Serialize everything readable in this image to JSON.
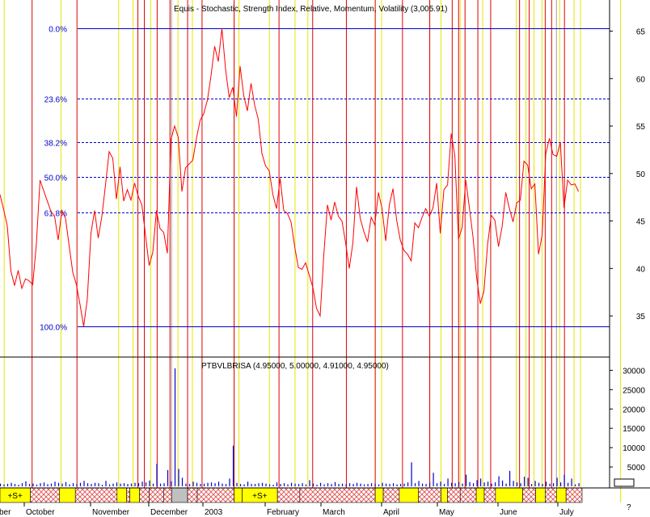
{
  "header": {
    "title": "Equis - Stochastic, Strength Index, Relative, Momentum, Volatility (3,005.91)",
    "volume_title": "PTBVLBRISA (4.95000, 5.00000, 4.91000, 4.95000)"
  },
  "fib_levels": [
    {
      "label": "0.0%",
      "value": 65.3
    },
    {
      "label": "23.6%",
      "value": 57.9
    },
    {
      "label": "38.2%",
      "value": 53.3
    },
    {
      "label": "50.0%",
      "value": 49.6
    },
    {
      "label": "61.8%",
      "value": 45.9
    },
    {
      "label": "100.0%",
      "value": 33.9
    }
  ],
  "price_axis": {
    "ticks": [
      "65",
      "60",
      "55",
      "50",
      "45",
      "40",
      "35"
    ]
  },
  "volume_axis": {
    "ticks": [
      "30000",
      "25000",
      "20000",
      "15000",
      "10000",
      "5000"
    ]
  },
  "months": [
    "ber",
    "October",
    "November",
    "December",
    "2003",
    "February",
    "March",
    "April",
    "May",
    "June",
    "July"
  ],
  "misc": {
    "corner_mark": "?"
  },
  "band_labels": [
    "+S+",
    "+S+"
  ],
  "chart_data": {
    "type": "line",
    "title": "Equis - Stochastic, Strength Index, Relative, Momentum, Volatility (3,005.91)",
    "ylim": [
      31,
      67
    ],
    "x_range": [
      0,
      160
    ],
    "y_ticks": [
      35,
      40,
      45,
      50,
      55,
      60,
      65
    ],
    "series": [
      {
        "type": "line",
        "color": "#ff0000",
        "x": [
          0,
          1,
          2,
          3,
          4,
          5,
          6,
          7,
          8,
          9,
          10,
          11,
          12,
          13,
          14,
          15,
          16,
          17,
          18,
          19,
          20,
          21,
          22,
          23,
          24,
          25,
          26,
          27,
          28,
          29,
          30,
          31,
          32,
          33,
          34,
          35,
          36,
          37,
          38,
          39,
          40,
          41,
          42,
          43,
          44,
          45,
          46,
          47,
          48,
          49,
          50,
          51,
          52,
          53,
          54,
          55,
          56,
          57,
          58,
          59,
          60,
          61,
          62,
          63,
          64,
          65,
          66,
          67,
          68,
          69,
          70,
          71,
          72,
          73,
          74,
          75,
          76,
          77,
          78,
          79,
          80,
          81,
          82,
          83,
          84,
          85,
          86,
          87,
          88,
          89,
          90,
          91,
          92,
          93,
          94,
          95,
          96,
          97,
          98,
          99,
          100,
          101,
          102,
          103,
          104,
          105,
          106,
          107,
          108,
          109,
          110,
          111,
          112,
          113,
          114,
          115,
          116,
          117,
          118,
          119,
          120,
          121,
          122,
          123,
          124,
          125,
          126,
          127,
          128,
          129,
          130,
          131,
          132,
          133,
          134,
          135,
          136,
          137,
          138,
          139,
          140,
          141,
          142,
          143,
          144,
          145,
          146,
          147,
          148,
          149,
          150,
          151,
          152,
          153,
          154,
          155,
          156,
          157,
          158,
          159
        ],
        "values": [
          47.8,
          46.2,
          44.5,
          39.7,
          38.2,
          39.8,
          37.9,
          38.9,
          38.7,
          38.3,
          42.6,
          49.3,
          48.2,
          47.1,
          46.0,
          45.5,
          43.0,
          46.1,
          45.3,
          42.4,
          39.6,
          38.3,
          36.2,
          33.9,
          36.8,
          43.7,
          46.1,
          43.2,
          45.5,
          48.8,
          52.3,
          51.6,
          47.3,
          50.7,
          47.1,
          48.3,
          47.2,
          49.0,
          47.6,
          46.7,
          43.5,
          40.3,
          41.7,
          46.1,
          44.2,
          43.8,
          41.6,
          53.6,
          55.0,
          53.8,
          48.1,
          50.6,
          51.0,
          51.4,
          53.7,
          55.6,
          56.3,
          57.7,
          60.3,
          63.4,
          61.8,
          65.3,
          61.0,
          58.0,
          59.1,
          56.0,
          61.3,
          58.2,
          56.6,
          59.5,
          57.2,
          55.7,
          52.1,
          50.8,
          50.3,
          47.8,
          46.3,
          49.5,
          46.1,
          45.8,
          44.9,
          42.3,
          40.1,
          39.9,
          40.6,
          39.3,
          38.0,
          35.8,
          35.0,
          41.4,
          46.7,
          45.1,
          47.0,
          45.5,
          45.0,
          42.7,
          40.0,
          42.7,
          48.6,
          45.3,
          43.9,
          42.8,
          45.4,
          44.6,
          48.0,
          46.3,
          42.9,
          46.7,
          48.4,
          45.1,
          43.0,
          41.9,
          41.5,
          40.8,
          44.8,
          44.3,
          45.4,
          46.3,
          45.5,
          46.4,
          49.0,
          43.7,
          48.3,
          48.8,
          54.2,
          51.9,
          43.1,
          44.3,
          49.3,
          46.4,
          43.3,
          39.0,
          36.3,
          37.6,
          42.5,
          45.6,
          45.1,
          42.3,
          44.4,
          48.0,
          46.3,
          44.9,
          46.9,
          47.2,
          51.3,
          50.9,
          48.4,
          48.9,
          41.5,
          43.5,
          52.1,
          53.7,
          52.0,
          51.8,
          53.3,
          46.4,
          49.3,
          48.8,
          48.9,
          48.1
        ]
      },
      {
        "type": "volume",
        "name": "PTBVLBRISA",
        "color": "#0000cc",
        "values": [
          700,
          500,
          650,
          900,
          600,
          400,
          800,
          1300,
          600,
          700,
          450,
          800,
          1000,
          550,
          700,
          1200,
          900,
          700,
          1100,
          500,
          800,
          600,
          900,
          1400,
          800,
          600,
          900,
          800,
          400,
          1400,
          500,
          700,
          1000,
          700,
          800,
          600,
          700,
          900,
          800,
          1200,
          1000,
          1500,
          700,
          5800,
          700,
          800,
          4200,
          1300,
          30500,
          4500,
          2200,
          700,
          600,
          1200,
          900,
          600,
          700,
          900,
          1000,
          800,
          1200,
          700,
          600,
          2000,
          10500,
          900,
          600,
          500,
          1200,
          600,
          600,
          800,
          900,
          700,
          500,
          400,
          1000,
          600,
          800,
          500,
          900,
          700,
          600,
          800,
          500,
          1600,
          700,
          400,
          900,
          500,
          800,
          600,
          1100,
          600,
          700,
          500,
          800,
          600,
          900,
          700,
          500,
          600,
          800,
          700,
          500,
          900,
          700,
          600,
          800,
          500,
          600,
          700,
          1000,
          6200,
          800,
          1400,
          700,
          600,
          900,
          3500,
          800,
          1200,
          600,
          2000,
          900,
          800,
          1100,
          700,
          3000,
          1100,
          800,
          1600,
          2000,
          1000,
          1200,
          700,
          1000,
          2600,
          1500,
          700,
          4000,
          1400,
          1000,
          800,
          2500,
          2200,
          600,
          1400,
          900,
          600,
          1200,
          700,
          800,
          2200,
          1000,
          3000,
          900,
          2000,
          500,
          800
        ]
      }
    ],
    "volume_ylim": [
      0,
      32000
    ],
    "volume_ticks": [
      5000,
      10000,
      15000,
      20000,
      25000,
      30000
    ],
    "red_event_x": [
      10.0,
      24.0,
      43.0,
      45.0,
      49.0,
      53.0,
      58.5,
      63.0,
      73.0,
      87.0,
      97.5,
      108.0,
      117.0,
      125.5,
      134.0,
      141.0,
      143.0,
      145.0,
      149.0,
      153.0,
      162.0,
      165.0,
      170.0,
      172.0,
      176.0
    ],
    "yellow_event_x": [
      1.3,
      19.0,
      37.0,
      41.5,
      47.0,
      55.5,
      60.0,
      73.0,
      74.5,
      84.0,
      92.0,
      96.0,
      117.0,
      119.0,
      134.0,
      137.5,
      143.5,
      150.5,
      161.0,
      164.0,
      166.5,
      169.0,
      174.5,
      179.0,
      181.0,
      193.5
    ],
    "gray_event_x": [
      53.5,
      173.5
    ],
    "bands": [
      {
        "x0": 0,
        "x1": 9.5,
        "color": "yellow"
      },
      {
        "x0": 9.5,
        "x1": 18.5,
        "color": "hatch"
      },
      {
        "x0": 18.5,
        "x1": 23.5,
        "color": "yellow"
      },
      {
        "x0": 23.5,
        "x1": 36.5,
        "color": "hatch"
      },
      {
        "x0": 36.5,
        "x1": 39.5,
        "color": "yellow"
      },
      {
        "x0": 39.5,
        "x1": 40.5,
        "color": "hatch"
      },
      {
        "x0": 40.5,
        "x1": 43.5,
        "color": "yellow"
      },
      {
        "x0": 43.5,
        "x1": 46.5,
        "color": "hatch"
      },
      {
        "x0": 46.5,
        "x1": 51.0,
        "color": "hatch"
      },
      {
        "x0": 51.0,
        "x1": 53.5,
        "color": "hatch"
      },
      {
        "x0": 53.5,
        "x1": 58.5,
        "color": "gray"
      },
      {
        "x0": 58.5,
        "x1": 61.5,
        "color": "hatch"
      },
      {
        "x0": 61.5,
        "x1": 73.0,
        "color": "hatch"
      },
      {
        "x0": 73.0,
        "x1": 75.5,
        "color": "yellow"
      },
      {
        "x0": 75.5,
        "x1": 86.5,
        "color": "yellow"
      },
      {
        "x0": 86.5,
        "x1": 93.5,
        "color": "hatch"
      },
      {
        "x0": 93.5,
        "x1": 117.0,
        "color": "hatch"
      },
      {
        "x0": 117.0,
        "x1": 119.5,
        "color": "yellow"
      },
      {
        "x0": 119.5,
        "x1": 124.5,
        "color": "hatch"
      },
      {
        "x0": 124.5,
        "x1": 130.5,
        "color": "yellow"
      },
      {
        "x0": 130.5,
        "x1": 137.5,
        "color": "hatch"
      },
      {
        "x0": 137.5,
        "x1": 139.5,
        "color": "yellow"
      },
      {
        "x0": 139.5,
        "x1": 143.5,
        "color": "hatch"
      },
      {
        "x0": 143.5,
        "x1": 148.5,
        "color": "hatch"
      },
      {
        "x0": 148.5,
        "x1": 151.0,
        "color": "yellow"
      },
      {
        "x0": 151.0,
        "x1": 154.5,
        "color": "hatch"
      },
      {
        "x0": 154.5,
        "x1": 163.0,
        "color": "yellow"
      },
      {
        "x0": 163.0,
        "x1": 167.0,
        "color": "hatch"
      },
      {
        "x0": 167.0,
        "x1": 170.0,
        "color": "yellow"
      },
      {
        "x0": 170.0,
        "x1": 173.5,
        "color": "hatch"
      },
      {
        "x0": 173.5,
        "x1": 176.5,
        "color": "yellow"
      },
      {
        "x0": 176.5,
        "x1": 181.5,
        "color": "hatch"
      }
    ]
  }
}
